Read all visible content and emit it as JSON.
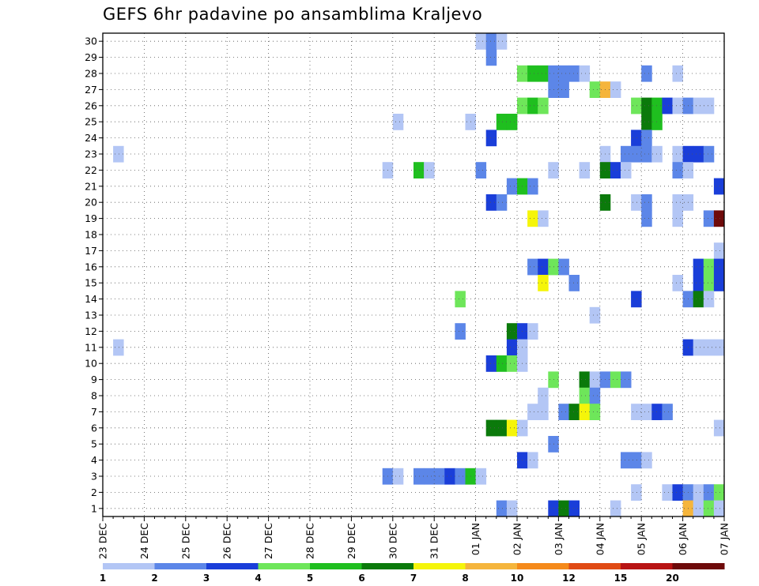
{
  "chart_data": {
    "type": "heatmap",
    "title": "GEFS 6hr padavine po ansamblima Kraljevo",
    "xlabel": "",
    "ylabel": "",
    "y_ticks": [
      1,
      2,
      3,
      4,
      5,
      6,
      7,
      8,
      9,
      10,
      11,
      12,
      13,
      14,
      15,
      16,
      17,
      18,
      19,
      20,
      21,
      22,
      23,
      24,
      25,
      26,
      27,
      28,
      29,
      30
    ],
    "x_ticks": [
      "23 DEC",
      "24 DEC",
      "25 DEC",
      "26 DEC",
      "27 DEC",
      "28 DEC",
      "29 DEC",
      "30 DEC",
      "31 DEC",
      "01 JAN",
      "02 JAN",
      "03 JAN",
      "04 JAN",
      "05 JAN",
      "06 JAN",
      "07 JAN"
    ],
    "time_step_hours": 6,
    "x_range_steps": [
      0,
      60
    ],
    "y_range": [
      0.5,
      30.5
    ],
    "grid": true,
    "colorbar": {
      "levels": [
        "1",
        "2",
        "3",
        "4",
        "5",
        "6",
        "7",
        "8",
        "10",
        "12",
        "15",
        "20"
      ],
      "colors": [
        "#b3c6f5",
        "#5c86e8",
        "#1a3ed9",
        "#6ee65a",
        "#1fbf1f",
        "#0b7a0b",
        "#f5f50a",
        "#f5b53c",
        "#f58a1a",
        "#e04a14",
        "#b81414",
        "#6e0a0a"
      ]
    },
    "cells": [
      {
        "member": 30,
        "step": 36,
        "level": 1
      },
      {
        "member": 30,
        "step": 37,
        "level": 2
      },
      {
        "member": 30,
        "step": 38,
        "level": 1
      },
      {
        "member": 29,
        "step": 37,
        "level": 2
      },
      {
        "member": 28,
        "step": 40,
        "level": 4
      },
      {
        "member": 28,
        "step": 41,
        "level": 5
      },
      {
        "member": 28,
        "step": 42,
        "level": 5
      },
      {
        "member": 28,
        "step": 43,
        "level": 2
      },
      {
        "member": 28,
        "step": 44,
        "level": 2
      },
      {
        "member": 28,
        "step": 45,
        "level": 2
      },
      {
        "member": 28,
        "step": 46,
        "level": 1
      },
      {
        "member": 28,
        "step": 52,
        "level": 2
      },
      {
        "member": 28,
        "step": 55,
        "level": 1
      },
      {
        "member": 27,
        "step": 43,
        "level": 2
      },
      {
        "member": 27,
        "step": 44,
        "level": 2
      },
      {
        "member": 27,
        "step": 47,
        "level": 4
      },
      {
        "member": 27,
        "step": 48,
        "level": 8
      },
      {
        "member": 27,
        "step": 49,
        "level": 1
      },
      {
        "member": 26,
        "step": 40,
        "level": 4
      },
      {
        "member": 26,
        "step": 41,
        "level": 5
      },
      {
        "member": 26,
        "step": 42,
        "level": 4
      },
      {
        "member": 26,
        "step": 51,
        "level": 4
      },
      {
        "member": 26,
        "step": 52,
        "level": 6
      },
      {
        "member": 26,
        "step": 53,
        "level": 5
      },
      {
        "member": 26,
        "step": 54,
        "level": 3
      },
      {
        "member": 26,
        "step": 55,
        "level": 1
      },
      {
        "member": 26,
        "step": 56,
        "level": 2
      },
      {
        "member": 26,
        "step": 57,
        "level": 1
      },
      {
        "member": 26,
        "step": 58,
        "level": 1
      },
      {
        "member": 25,
        "step": 28,
        "level": 1
      },
      {
        "member": 25,
        "step": 35,
        "level": 1
      },
      {
        "member": 25,
        "step": 38,
        "level": 5
      },
      {
        "member": 25,
        "step": 39,
        "level": 5
      },
      {
        "member": 25,
        "step": 52,
        "level": 6
      },
      {
        "member": 25,
        "step": 53,
        "level": 5
      },
      {
        "member": 24,
        "step": 37,
        "level": 3
      },
      {
        "member": 24,
        "step": 51,
        "level": 3
      },
      {
        "member": 24,
        "step": 52,
        "level": 2
      },
      {
        "member": 23,
        "step": 1,
        "level": 1
      },
      {
        "member": 23,
        "step": 48,
        "level": 1
      },
      {
        "member": 23,
        "step": 50,
        "level": 2
      },
      {
        "member": 23,
        "step": 51,
        "level": 2
      },
      {
        "member": 23,
        "step": 52,
        "level": 2
      },
      {
        "member": 23,
        "step": 53,
        "level": 1
      },
      {
        "member": 23,
        "step": 55,
        "level": 1
      },
      {
        "member": 23,
        "step": 56,
        "level": 3
      },
      {
        "member": 23,
        "step": 57,
        "level": 3
      },
      {
        "member": 23,
        "step": 58,
        "level": 2
      },
      {
        "member": 22,
        "step": 27,
        "level": 1
      },
      {
        "member": 22,
        "step": 30,
        "level": 5
      },
      {
        "member": 22,
        "step": 31,
        "level": 1
      },
      {
        "member": 22,
        "step": 36,
        "level": 2
      },
      {
        "member": 22,
        "step": 43,
        "level": 1
      },
      {
        "member": 22,
        "step": 46,
        "level": 1
      },
      {
        "member": 22,
        "step": 48,
        "level": 6
      },
      {
        "member": 22,
        "step": 49,
        "level": 3
      },
      {
        "member": 22,
        "step": 50,
        "level": 1
      },
      {
        "member": 22,
        "step": 55,
        "level": 2
      },
      {
        "member": 22,
        "step": 56,
        "level": 1
      },
      {
        "member": 21,
        "step": 39,
        "level": 2
      },
      {
        "member": 21,
        "step": 40,
        "level": 5
      },
      {
        "member": 21,
        "step": 41,
        "level": 2
      },
      {
        "member": 21,
        "step": 59,
        "level": 3
      },
      {
        "member": 20,
        "step": 37,
        "level": 3
      },
      {
        "member": 20,
        "step": 38,
        "level": 2
      },
      {
        "member": 20,
        "step": 48,
        "level": 6
      },
      {
        "member": 20,
        "step": 51,
        "level": 1
      },
      {
        "member": 20,
        "step": 52,
        "level": 2
      },
      {
        "member": 20,
        "step": 55,
        "level": 1
      },
      {
        "member": 20,
        "step": 56,
        "level": 1
      },
      {
        "member": 19,
        "step": 41,
        "level": 7
      },
      {
        "member": 19,
        "step": 42,
        "level": 1
      },
      {
        "member": 19,
        "step": 52,
        "level": 2
      },
      {
        "member": 19,
        "step": 55,
        "level": 1
      },
      {
        "member": 19,
        "step": 58,
        "level": 2
      },
      {
        "member": 19,
        "step": 59,
        "level": 12
      },
      {
        "member": 17,
        "step": 59,
        "level": 1
      },
      {
        "member": 16,
        "step": 41,
        "level": 2
      },
      {
        "member": 16,
        "step": 42,
        "level": 3
      },
      {
        "member": 16,
        "step": 43,
        "level": 4
      },
      {
        "member": 16,
        "step": 44,
        "level": 2
      },
      {
        "member": 16,
        "step": 57,
        "level": 3
      },
      {
        "member": 16,
        "step": 58,
        "level": 4
      },
      {
        "member": 16,
        "step": 59,
        "level": 3
      },
      {
        "member": 15,
        "step": 42,
        "level": 7
      },
      {
        "member": 15,
        "step": 45,
        "level": 2
      },
      {
        "member": 15,
        "step": 55,
        "level": 1
      },
      {
        "member": 15,
        "step": 57,
        "level": 3
      },
      {
        "member": 15,
        "step": 58,
        "level": 4
      },
      {
        "member": 15,
        "step": 59,
        "level": 3
      },
      {
        "member": 14,
        "step": 34,
        "level": 4
      },
      {
        "member": 14,
        "step": 51,
        "level": 3
      },
      {
        "member": 14,
        "step": 56,
        "level": 2
      },
      {
        "member": 14,
        "step": 57,
        "level": 6
      },
      {
        "member": 14,
        "step": 58,
        "level": 1
      },
      {
        "member": 13,
        "step": 47,
        "level": 1
      },
      {
        "member": 12,
        "step": 34,
        "level": 2
      },
      {
        "member": 12,
        "step": 39,
        "level": 6
      },
      {
        "member": 12,
        "step": 40,
        "level": 3
      },
      {
        "member": 12,
        "step": 41,
        "level": 1
      },
      {
        "member": 11,
        "step": 1,
        "level": 1
      },
      {
        "member": 11,
        "step": 39,
        "level": 3
      },
      {
        "member": 11,
        "step": 40,
        "level": 1
      },
      {
        "member": 11,
        "step": 56,
        "level": 3
      },
      {
        "member": 11,
        "step": 57,
        "level": 1
      },
      {
        "member": 11,
        "step": 58,
        "level": 1
      },
      {
        "member": 11,
        "step": 59,
        "level": 1
      },
      {
        "member": 10,
        "step": 37,
        "level": 3
      },
      {
        "member": 10,
        "step": 38,
        "level": 5
      },
      {
        "member": 10,
        "step": 39,
        "level": 4
      },
      {
        "member": 10,
        "step": 40,
        "level": 1
      },
      {
        "member": 9,
        "step": 43,
        "level": 4
      },
      {
        "member": 9,
        "step": 46,
        "level": 6
      },
      {
        "member": 9,
        "step": 47,
        "level": 1
      },
      {
        "member": 9,
        "step": 48,
        "level": 2
      },
      {
        "member": 9,
        "step": 49,
        "level": 4
      },
      {
        "member": 9,
        "step": 50,
        "level": 2
      },
      {
        "member": 8,
        "step": 42,
        "level": 1
      },
      {
        "member": 8,
        "step": 46,
        "level": 4
      },
      {
        "member": 8,
        "step": 47,
        "level": 2
      },
      {
        "member": 7,
        "step": 41,
        "level": 1
      },
      {
        "member": 7,
        "step": 42,
        "level": 1
      },
      {
        "member": 7,
        "step": 44,
        "level": 2
      },
      {
        "member": 7,
        "step": 45,
        "level": 6
      },
      {
        "member": 7,
        "step": 46,
        "level": 7
      },
      {
        "member": 7,
        "step": 47,
        "level": 4
      },
      {
        "member": 7,
        "step": 51,
        "level": 1
      },
      {
        "member": 7,
        "step": 52,
        "level": 1
      },
      {
        "member": 7,
        "step": 53,
        "level": 3
      },
      {
        "member": 7,
        "step": 54,
        "level": 2
      },
      {
        "member": 6,
        "step": 37,
        "level": 6
      },
      {
        "member": 6,
        "step": 38,
        "level": 6
      },
      {
        "member": 6,
        "step": 39,
        "level": 7
      },
      {
        "member": 6,
        "step": 40,
        "level": 1
      },
      {
        "member": 6,
        "step": 59,
        "level": 1
      },
      {
        "member": 5,
        "step": 43,
        "level": 2
      },
      {
        "member": 4,
        "step": 40,
        "level": 3
      },
      {
        "member": 4,
        "step": 41,
        "level": 1
      },
      {
        "member": 4,
        "step": 50,
        "level": 2
      },
      {
        "member": 4,
        "step": 51,
        "level": 2
      },
      {
        "member": 4,
        "step": 52,
        "level": 1
      },
      {
        "member": 3,
        "step": 27,
        "level": 2
      },
      {
        "member": 3,
        "step": 28,
        "level": 1
      },
      {
        "member": 3,
        "step": 30,
        "level": 2
      },
      {
        "member": 3,
        "step": 31,
        "level": 2
      },
      {
        "member": 3,
        "step": 32,
        "level": 2
      },
      {
        "member": 3,
        "step": 33,
        "level": 3
      },
      {
        "member": 3,
        "step": 34,
        "level": 2
      },
      {
        "member": 3,
        "step": 35,
        "level": 5
      },
      {
        "member": 3,
        "step": 36,
        "level": 1
      },
      {
        "member": 2,
        "step": 51,
        "level": 1
      },
      {
        "member": 2,
        "step": 54,
        "level": 1
      },
      {
        "member": 2,
        "step": 55,
        "level": 3
      },
      {
        "member": 2,
        "step": 56,
        "level": 2
      },
      {
        "member": 2,
        "step": 57,
        "level": 1
      },
      {
        "member": 2,
        "step": 58,
        "level": 2
      },
      {
        "member": 2,
        "step": 59,
        "level": 4
      },
      {
        "member": 1,
        "step": 38,
        "level": 2
      },
      {
        "member": 1,
        "step": 39,
        "level": 1
      },
      {
        "member": 1,
        "step": 43,
        "level": 3
      },
      {
        "member": 1,
        "step": 44,
        "level": 6
      },
      {
        "member": 1,
        "step": 45,
        "level": 3
      },
      {
        "member": 1,
        "step": 49,
        "level": 1
      },
      {
        "member": 1,
        "step": 56,
        "level": 8
      },
      {
        "member": 1,
        "step": 57,
        "level": 1
      },
      {
        "member": 1,
        "step": 58,
        "level": 4
      },
      {
        "member": 1,
        "step": 59,
        "level": 1
      }
    ]
  }
}
